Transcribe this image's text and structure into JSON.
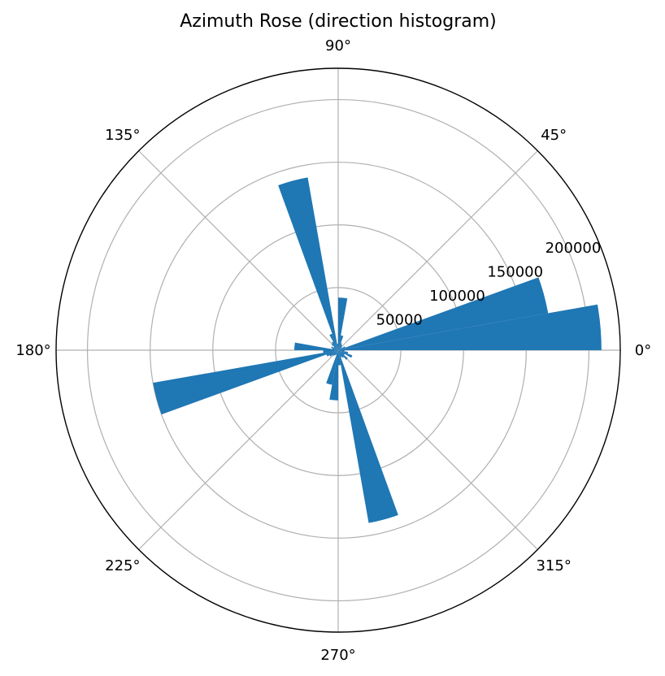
{
  "chart_data": {
    "type": "bar",
    "polar": true,
    "title": "Azimuth Rose (direction histogram)",
    "angle_unit": "degrees",
    "angle_ticks": [
      "0°",
      "45°",
      "90°",
      "135°",
      "180°",
      "225°",
      "270°",
      "315°"
    ],
    "radial_ticks": [
      "50000",
      "100000",
      "150000",
      "200000"
    ],
    "radial_tick_values": [
      50000,
      100000,
      150000,
      200000
    ],
    "rlim": [
      0,
      225000
    ],
    "grid": true,
    "bin_width_deg": 10,
    "bins": [
      {
        "center_deg": 5,
        "value": 210000
      },
      {
        "center_deg": 15,
        "value": 170000
      },
      {
        "center_deg": 25,
        "value": 6000
      },
      {
        "center_deg": 35,
        "value": 3000
      },
      {
        "center_deg": 45,
        "value": 4000
      },
      {
        "center_deg": 55,
        "value": 5000
      },
      {
        "center_deg": 65,
        "value": 6000
      },
      {
        "center_deg": 75,
        "value": 12000
      },
      {
        "center_deg": 85,
        "value": 42000
      },
      {
        "center_deg": 95,
        "value": 5000
      },
      {
        "center_deg": 105,
        "value": 140000
      },
      {
        "center_deg": 115,
        "value": 14000
      },
      {
        "center_deg": 125,
        "value": 8000
      },
      {
        "center_deg": 135,
        "value": 7000
      },
      {
        "center_deg": 145,
        "value": 4000
      },
      {
        "center_deg": 155,
        "value": 6000
      },
      {
        "center_deg": 165,
        "value": 5000
      },
      {
        "center_deg": 175,
        "value": 35000
      },
      {
        "center_deg": 185,
        "value": 12000
      },
      {
        "center_deg": 195,
        "value": 150000
      },
      {
        "center_deg": 205,
        "value": 10000
      },
      {
        "center_deg": 215,
        "value": 8000
      },
      {
        "center_deg": 225,
        "value": 6000
      },
      {
        "center_deg": 235,
        "value": 5000
      },
      {
        "center_deg": 245,
        "value": 4000
      },
      {
        "center_deg": 255,
        "value": 28000
      },
      {
        "center_deg": 265,
        "value": 40000
      },
      {
        "center_deg": 275,
        "value": 12000
      },
      {
        "center_deg": 285,
        "value": 140000
      },
      {
        "center_deg": 295,
        "value": 6000
      },
      {
        "center_deg": 305,
        "value": 7000
      },
      {
        "center_deg": 315,
        "value": 10000
      },
      {
        "center_deg": 325,
        "value": 6000
      },
      {
        "center_deg": 335,
        "value": 12000
      },
      {
        "center_deg": 345,
        "value": 8000
      },
      {
        "center_deg": 355,
        "value": 5000
      }
    ],
    "bar_color": "#1f77b4"
  }
}
